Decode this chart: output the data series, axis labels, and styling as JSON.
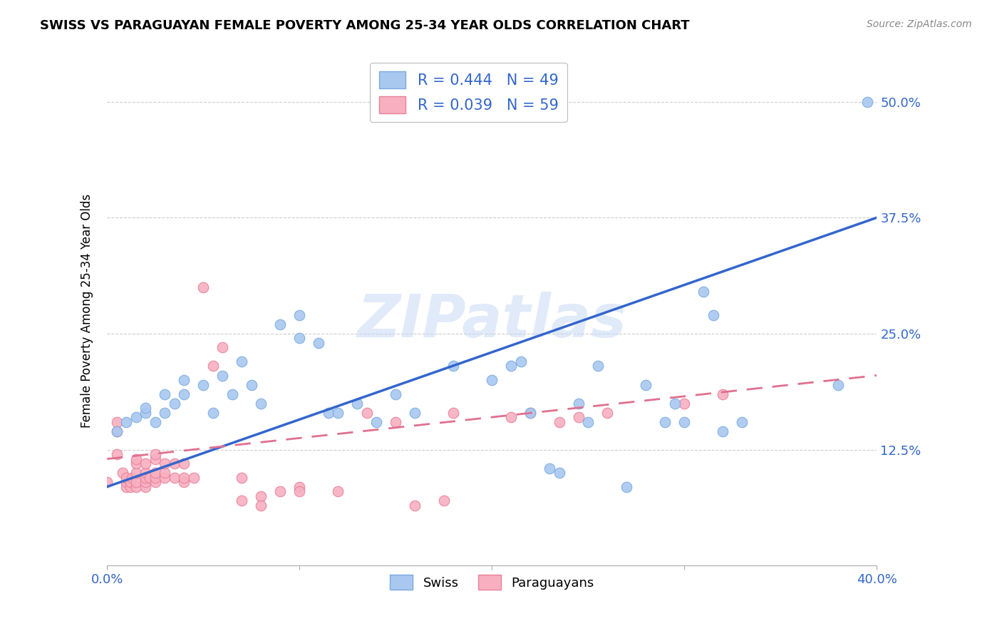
{
  "title": "SWISS VS PARAGUAYAN FEMALE POVERTY AMONG 25-34 YEAR OLDS CORRELATION CHART",
  "source": "Source: ZipAtlas.com",
  "ylabel": "Female Poverty Among 25-34 Year Olds",
  "ytick_labels": [
    "12.5%",
    "25.0%",
    "37.5%",
    "50.0%"
  ],
  "ytick_values": [
    0.125,
    0.25,
    0.375,
    0.5
  ],
  "xlim": [
    0.0,
    0.4
  ],
  "ylim": [
    0.0,
    0.55
  ],
  "swiss_color": "#a8c8f0",
  "swiss_edge_color": "#7aaae0",
  "paraguayan_color": "#f8b0c0",
  "paraguayan_edge_color": "#e88098",
  "swiss_R": 0.444,
  "swiss_N": 49,
  "paraguayan_R": 0.039,
  "paraguayan_N": 59,
  "watermark": "ZIPatlas",
  "legend_color": "#3366cc",
  "swiss_line_color": "#3366cc",
  "paraguayan_line_color": "#e07090",
  "swiss_line_start_y": 0.085,
  "swiss_line_end_y": 0.375,
  "paraguayan_line_start_y": 0.115,
  "paraguayan_line_end_y": 0.205,
  "swiss_scatter_x": [
    0.005,
    0.01,
    0.015,
    0.02,
    0.02,
    0.025,
    0.03,
    0.03,
    0.035,
    0.04,
    0.04,
    0.05,
    0.055,
    0.06,
    0.065,
    0.07,
    0.075,
    0.08,
    0.09,
    0.1,
    0.1,
    0.11,
    0.115,
    0.12,
    0.13,
    0.14,
    0.15,
    0.16,
    0.18,
    0.2,
    0.21,
    0.215,
    0.22,
    0.23,
    0.235,
    0.245,
    0.25,
    0.255,
    0.27,
    0.28,
    0.29,
    0.295,
    0.3,
    0.31,
    0.315,
    0.32,
    0.33,
    0.38,
    0.395
  ],
  "swiss_scatter_y": [
    0.145,
    0.155,
    0.16,
    0.165,
    0.17,
    0.155,
    0.165,
    0.185,
    0.175,
    0.185,
    0.2,
    0.195,
    0.165,
    0.205,
    0.185,
    0.22,
    0.195,
    0.175,
    0.26,
    0.245,
    0.27,
    0.24,
    0.165,
    0.165,
    0.175,
    0.155,
    0.185,
    0.165,
    0.215,
    0.2,
    0.215,
    0.22,
    0.165,
    0.105,
    0.1,
    0.175,
    0.155,
    0.215,
    0.085,
    0.195,
    0.155,
    0.175,
    0.155,
    0.295,
    0.27,
    0.145,
    0.155,
    0.195,
    0.5
  ],
  "paraguayan_scatter_x": [
    0.0,
    0.005,
    0.005,
    0.005,
    0.008,
    0.01,
    0.01,
    0.01,
    0.012,
    0.012,
    0.013,
    0.015,
    0.015,
    0.015,
    0.015,
    0.015,
    0.02,
    0.02,
    0.02,
    0.02,
    0.02,
    0.022,
    0.025,
    0.025,
    0.025,
    0.025,
    0.025,
    0.03,
    0.03,
    0.03,
    0.035,
    0.035,
    0.04,
    0.04,
    0.04,
    0.045,
    0.05,
    0.055,
    0.06,
    0.07,
    0.07,
    0.08,
    0.08,
    0.09,
    0.1,
    0.1,
    0.12,
    0.135,
    0.15,
    0.16,
    0.175,
    0.18,
    0.21,
    0.22,
    0.235,
    0.245,
    0.26,
    0.3,
    0.32
  ],
  "paraguayan_scatter_y": [
    0.09,
    0.155,
    0.145,
    0.12,
    0.1,
    0.085,
    0.09,
    0.095,
    0.085,
    0.09,
    0.095,
    0.085,
    0.09,
    0.1,
    0.11,
    0.115,
    0.085,
    0.09,
    0.095,
    0.1,
    0.11,
    0.095,
    0.09,
    0.095,
    0.1,
    0.115,
    0.12,
    0.095,
    0.1,
    0.11,
    0.095,
    0.11,
    0.09,
    0.095,
    0.11,
    0.095,
    0.3,
    0.215,
    0.235,
    0.095,
    0.07,
    0.075,
    0.065,
    0.08,
    0.085,
    0.08,
    0.08,
    0.165,
    0.155,
    0.065,
    0.07,
    0.165,
    0.16,
    0.165,
    0.155,
    0.16,
    0.165,
    0.175,
    0.185
  ],
  "xtick_positions": [
    0.0,
    0.1,
    0.2,
    0.3,
    0.4
  ],
  "background_color": "#ffffff"
}
